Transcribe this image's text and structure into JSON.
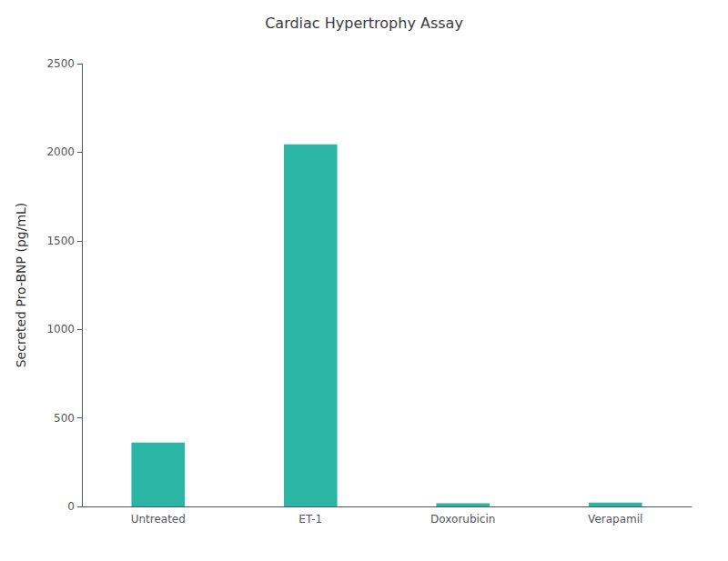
{
  "chart_data": {
    "type": "bar",
    "title": "Cardiac Hypertrophy Assay",
    "categories": [
      "Untreated",
      "ET-1",
      "Doxorubicin",
      "Verapamil"
    ],
    "values": [
      360,
      2045,
      18,
      22
    ],
    "color": "#2ab5a5",
    "ylabel": "Secreted Pro-BNP (pg/mL)",
    "ylim": [
      0,
      2500
    ],
    "yticks": [
      0,
      500,
      1000,
      1500,
      2000,
      2500
    ],
    "grid": false
  }
}
